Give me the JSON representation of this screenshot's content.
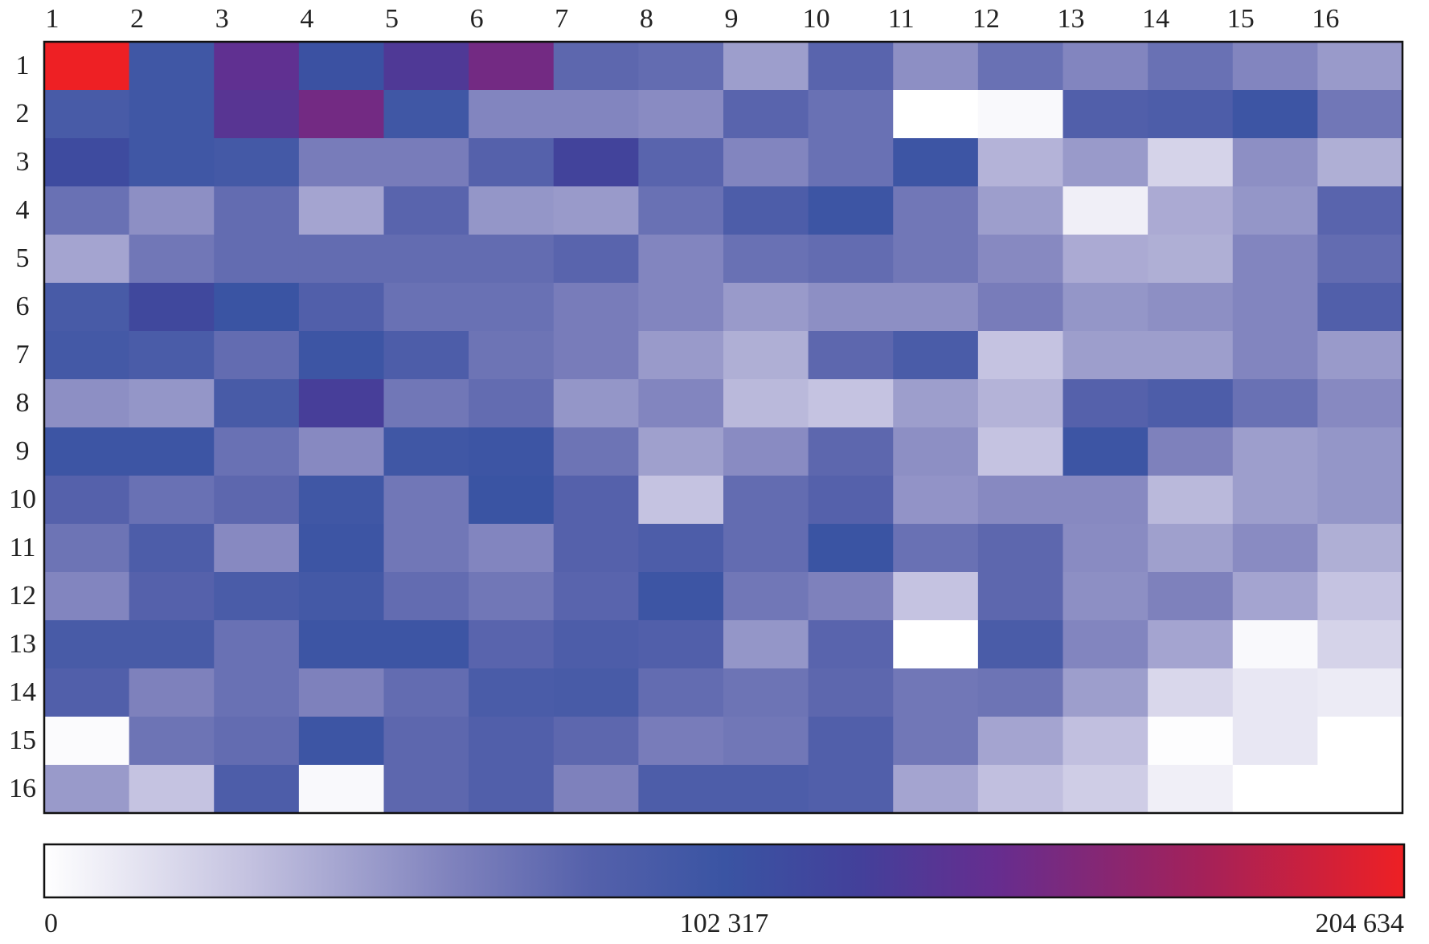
{
  "chart_data": {
    "type": "heatmap",
    "title": "",
    "x_labels": [
      "1",
      "2",
      "3",
      "4",
      "5",
      "6",
      "7",
      "8",
      "9",
      "10",
      "11",
      "12",
      "13",
      "14",
      "15",
      "16"
    ],
    "y_labels": [
      "1",
      "2",
      "3",
      "4",
      "5",
      "6",
      "7",
      "8",
      "9",
      "10",
      "11",
      "12",
      "13",
      "14",
      "15",
      "16"
    ],
    "colorbar": {
      "min": 0,
      "max": 204634,
      "tick_labels": [
        "0",
        "102 317",
        "204 634"
      ],
      "tick_values": [
        0,
        102317,
        204634
      ],
      "stops": [
        {
          "t": 0.0,
          "color": "#ffffff"
        },
        {
          "t": 0.15,
          "color": "#c4c2e0"
        },
        {
          "t": 0.3,
          "color": "#7f82bd"
        },
        {
          "t": 0.4,
          "color": "#5561ab"
        },
        {
          "t": 0.5,
          "color": "#3a54a3"
        },
        {
          "t": 0.6,
          "color": "#43409a"
        },
        {
          "t": 0.7,
          "color": "#662d8f"
        },
        {
          "t": 0.85,
          "color": "#a3215a"
        },
        {
          "t": 1.0,
          "color": "#ee2024"
        }
      ]
    },
    "values": [
      [
        204634,
        98000,
        140000,
        105000,
        130000,
        150000,
        78000,
        75000,
        48000,
        80000,
        55000,
        72000,
        60000,
        72000,
        60000,
        50000
      ],
      [
        92000,
        98000,
        135000,
        150000,
        98000,
        60000,
        60000,
        57000,
        80000,
        72000,
        0,
        3000,
        85000,
        88000,
        100000,
        68000
      ],
      [
        112000,
        98000,
        95000,
        65000,
        65000,
        82000,
        120000,
        80000,
        60000,
        72000,
        100000,
        38000,
        50000,
        22000,
        55000,
        40000
      ],
      [
        72000,
        55000,
        75000,
        45000,
        80000,
        52000,
        50000,
        72000,
        88000,
        100000,
        68000,
        48000,
        8000,
        42000,
        52000,
        80000
      ],
      [
        45000,
        68000,
        75000,
        75000,
        75000,
        75000,
        80000,
        60000,
        72000,
        75000,
        68000,
        58000,
        42000,
        40000,
        60000,
        75000
      ],
      [
        92000,
        115000,
        102000,
        85000,
        72000,
        72000,
        65000,
        60000,
        50000,
        55000,
        55000,
        65000,
        52000,
        55000,
        60000,
        85000
      ],
      [
        95000,
        90000,
        75000,
        100000,
        88000,
        70000,
        65000,
        50000,
        40000,
        78000,
        90000,
        30000,
        48000,
        48000,
        60000,
        50000
      ],
      [
        55000,
        52000,
        92000,
        125000,
        68000,
        75000,
        52000,
        60000,
        35000,
        30000,
        48000,
        38000,
        82000,
        88000,
        72000,
        58000
      ],
      [
        100000,
        100000,
        72000,
        58000,
        98000,
        100000,
        70000,
        47000,
        57000,
        78000,
        55000,
        30000,
        100000,
        62000,
        48000,
        52000
      ],
      [
        82000,
        72000,
        78000,
        98000,
        68000,
        102000,
        82000,
        30000,
        75000,
        82000,
        53000,
        58000,
        58000,
        35000,
        48000,
        52000
      ],
      [
        70000,
        88000,
        58000,
        100000,
        68000,
        60000,
        82000,
        88000,
        75000,
        102000,
        72000,
        78000,
        57000,
        47000,
        57000,
        40000
      ],
      [
        60000,
        82000,
        90000,
        95000,
        75000,
        68000,
        80000,
        100000,
        68000,
        62000,
        30000,
        78000,
        55000,
        62000,
        45000,
        30000
      ],
      [
        92000,
        92000,
        72000,
        100000,
        100000,
        80000,
        88000,
        85000,
        52000,
        80000,
        0,
        90000,
        60000,
        45000,
        3000,
        22000
      ],
      [
        85000,
        62000,
        72000,
        62000,
        75000,
        90000,
        92000,
        75000,
        70000,
        78000,
        68000,
        70000,
        48000,
        20000,
        12000,
        10000
      ],
      [
        2000,
        70000,
        75000,
        100000,
        78000,
        85000,
        78000,
        65000,
        68000,
        85000,
        68000,
        45000,
        32000,
        1000,
        12000,
        0
      ],
      [
        50000,
        30000,
        88000,
        3000,
        78000,
        85000,
        62000,
        88000,
        88000,
        85000,
        45000,
        32000,
        25000,
        8000,
        0,
        0
      ]
    ]
  }
}
